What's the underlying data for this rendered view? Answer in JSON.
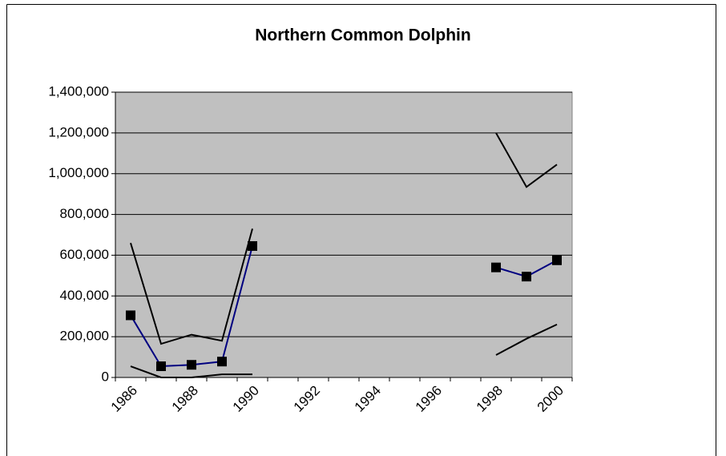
{
  "chart_data": {
    "type": "line",
    "title": "Northern Common Dolphin",
    "categories": [
      "1986",
      null,
      "1988",
      null,
      "1990",
      null,
      "1992",
      null,
      "1994",
      null,
      "1996",
      null,
      "1998",
      null,
      "2000"
    ],
    "series": [
      {
        "color": "#000080",
        "marker": "square",
        "values": [
          305000,
          55000,
          62000,
          78000,
          645000,
          null,
          null,
          null,
          null,
          null,
          null,
          null,
          540000,
          495000,
          575000
        ]
      },
      {
        "color": "#000000",
        "values": [
          660000,
          165000,
          210000,
          180000,
          730000,
          null,
          null,
          null,
          null,
          null,
          null,
          null,
          1200000,
          935000,
          1045000
        ]
      },
      {
        "color": "#000000",
        "values": [
          55000,
          0,
          0,
          15000,
          15000,
          null,
          null,
          null,
          null,
          null,
          null,
          null,
          110000,
          190000,
          260000
        ]
      }
    ],
    "ylim": [
      0,
      1400000
    ],
    "yticks": [
      0,
      {
        "value": 200000,
        "label": "200,000"
      },
      {
        "value": 400000,
        "label": "400,000"
      },
      {
        "value": 600000,
        "label": "600,000"
      },
      {
        "value": 800000,
        "label": "800,000"
      },
      {
        "value": 1000000,
        "label": "1,000,000"
      },
      {
        "value": 1200000,
        "label": "1,200,000"
      },
      {
        "value": 1400000,
        "label": "1,400,000"
      }
    ],
    "grid": true,
    "plot_background": "#c0c0c0"
  }
}
